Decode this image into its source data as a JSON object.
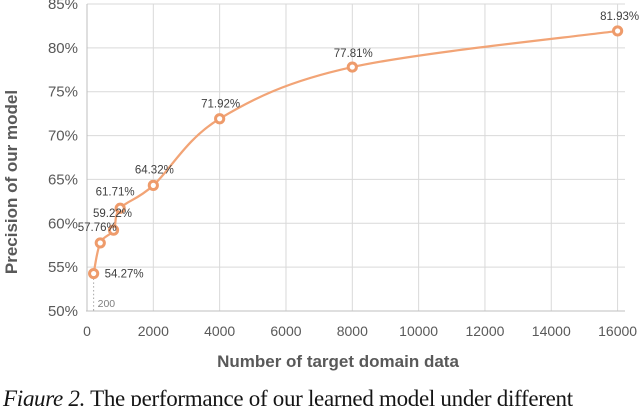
{
  "figure": {
    "caption_prefix": "Figure 2.",
    "caption_rest": " The performance of our learned model under different"
  },
  "chart_data": {
    "type": "line",
    "title": "",
    "xlabel": "Number of target domain data",
    "ylabel": "Precision of our model",
    "xlim": [
      0,
      16000
    ],
    "ylim": [
      50,
      85
    ],
    "x_ticks": [
      0,
      2000,
      4000,
      6000,
      8000,
      10000,
      12000,
      14000,
      16000
    ],
    "x_tick_labels": [
      "0",
      "2000",
      "4000",
      "6000",
      "8000",
      "10000",
      "12000",
      "14000",
      "16000"
    ],
    "y_ticks": [
      50,
      55,
      60,
      65,
      70,
      75,
      80,
      85
    ],
    "y_tick_labels": [
      "50%",
      "55%",
      "60%",
      "65%",
      "70%",
      "75%",
      "80%",
      "85%"
    ],
    "grid": true,
    "legend": "none",
    "series": [
      {
        "name": "Precision of our model",
        "x": [
          200,
          400,
          800,
          1000,
          2000,
          4000,
          8000,
          16000
        ],
        "y": [
          54.27,
          57.76,
          59.22,
          61.71,
          64.32,
          71.92,
          77.81,
          81.93
        ],
        "point_labels": [
          "54.27%",
          "57.76%",
          "59.22%",
          "61.71%",
          "64.32%",
          "71.92%",
          "77.81%",
          "81.93%"
        ],
        "line_color": "#F2A476",
        "marker_color": "#EE9B6B",
        "marker": "open-circle",
        "smooth": true
      }
    ],
    "annotation": {
      "text": "200",
      "x": 200,
      "type": "dotted-dropline"
    },
    "colors": {
      "gridline": "#D9D9D9",
      "axis_line": "#BFBFBF",
      "dropline": "#A6A6A6",
      "tick_label": "#595959",
      "axis_title": "#595959",
      "data_label": "#3F3F3F",
      "annotation": "#7F7F7F"
    }
  }
}
